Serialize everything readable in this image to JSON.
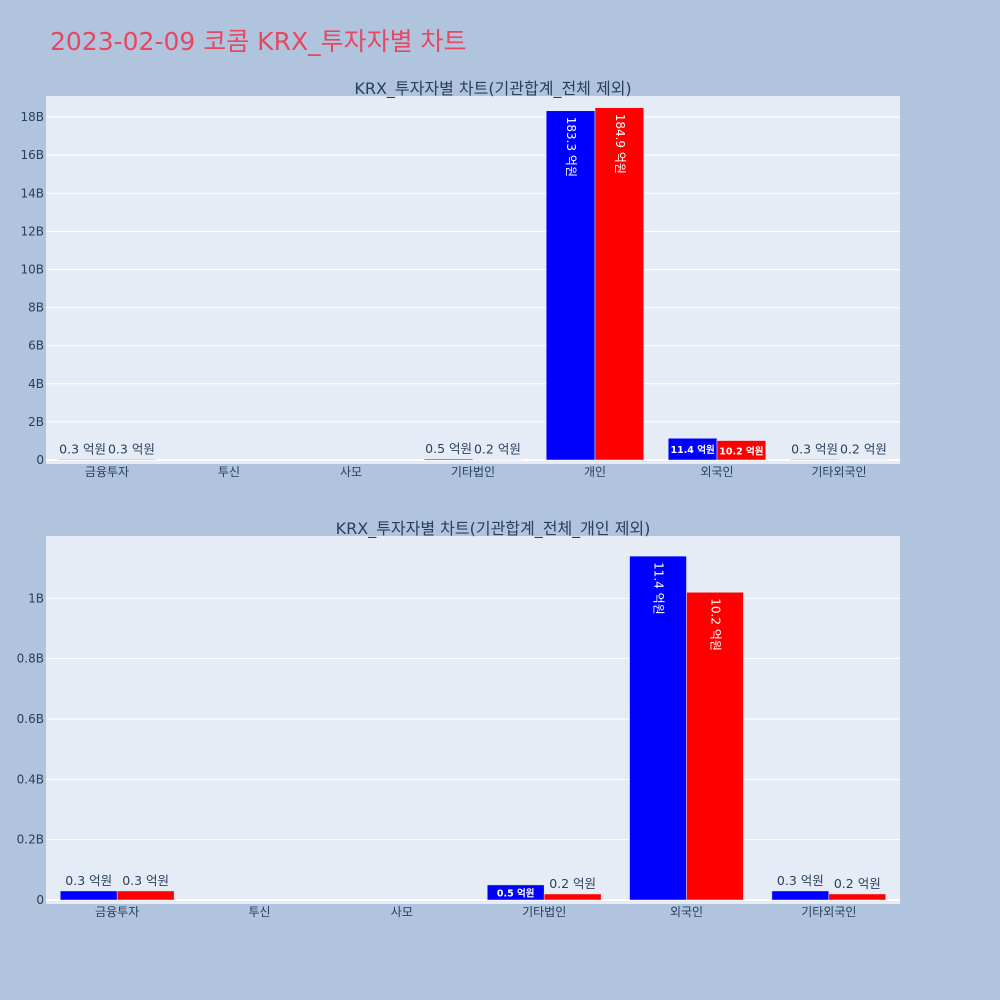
{
  "title": "2023-02-09 코콤 KRX_투자자별 차트",
  "colors": {
    "buy": "#0000ff",
    "sell": "#ff0000",
    "plot_bg": "#e5ecf6",
    "page_bg": "#b0c4de",
    "title": "#e8475f"
  },
  "chart_data": [
    {
      "type": "bar",
      "title": "KRX_투자자별 차트(기관합계_전체 제외)",
      "categories": [
        "금융투자",
        "투신",
        "사모",
        "기타법인",
        "개인",
        "외국인",
        "기타외국인"
      ],
      "series": [
        {
          "values": [
            30000000,
            0,
            0,
            50000000,
            18330000000,
            1140000000,
            30000000
          ],
          "labels": [
            "0.3 억원",
            "",
            "",
            "0.5 억원",
            "183.3 억원",
            "11.4 억원",
            "0.3 억원"
          ]
        },
        {
          "values": [
            30000000,
            0,
            0,
            20000000,
            18490000000,
            1020000000,
            20000000
          ],
          "labels": [
            "0.3 억원",
            "",
            "",
            "0.2 억원",
            "184.9 억원",
            "10.2 억원",
            "0.2 억원"
          ]
        }
      ],
      "ylim": [
        0,
        19000000000
      ],
      "yticks": [
        0,
        2000000000,
        4000000000,
        6000000000,
        8000000000,
        10000000000,
        12000000000,
        14000000000,
        16000000000,
        18000000000
      ],
      "ytick_labels": [
        "0",
        "2B",
        "4B",
        "6B",
        "8B",
        "10B",
        "12B",
        "14B",
        "16B",
        "18B"
      ],
      "grid": true
    },
    {
      "type": "bar",
      "title": "KRX_투자자별 차트(기관합계_전체_개인 제외)",
      "categories": [
        "금융투자",
        "투신",
        "사모",
        "기타법인",
        "외국인",
        "기타외국인"
      ],
      "series": [
        {
          "values": [
            30000000,
            0,
            0,
            50000000,
            1140000000,
            30000000
          ],
          "labels": [
            "0.3 억원",
            "",
            "",
            "0.5 억원",
            "11.4 억원",
            "0.3 억원"
          ]
        },
        {
          "values": [
            30000000,
            0,
            0,
            20000000,
            1020000000,
            20000000
          ],
          "labels": [
            "0.3 억원",
            "",
            "",
            "0.2 억원",
            "10.2 억원",
            "0.2 억원"
          ]
        }
      ],
      "ylim": [
        0,
        1200000000
      ],
      "yticks": [
        0,
        200000000,
        400000000,
        600000000,
        800000000,
        1000000000
      ],
      "ytick_labels": [
        "0",
        "0.2B",
        "0.4B",
        "0.6B",
        "0.8B",
        "1B"
      ],
      "grid": true
    }
  ]
}
